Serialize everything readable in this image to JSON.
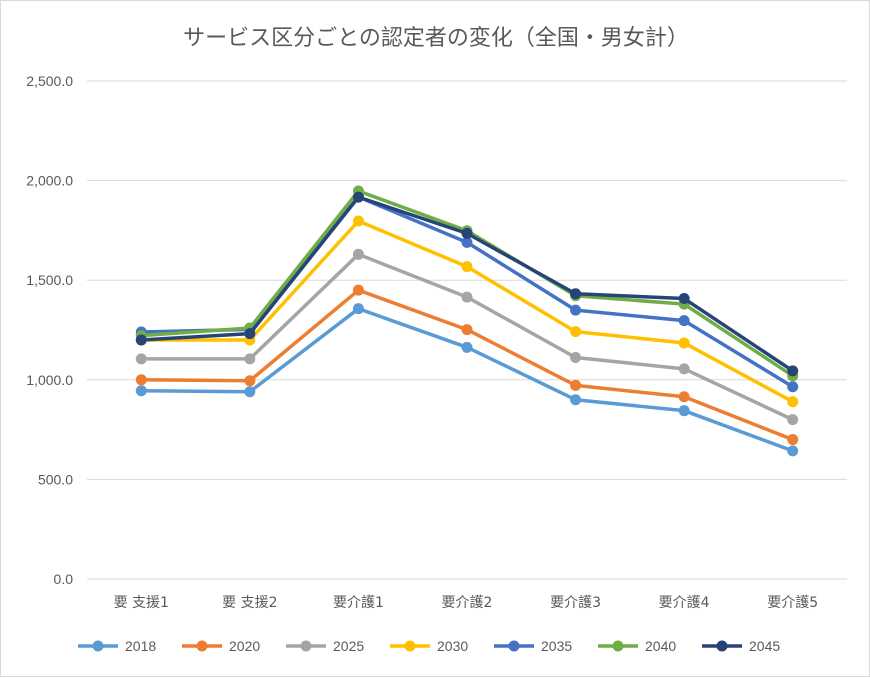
{
  "chart_data": {
    "type": "line",
    "title": "サービス区分ごとの認定者の変化（全国・男女計）",
    "categories": [
      "要 支援1",
      "要 支援2",
      "要介護1",
      "要介護2",
      "要介護3",
      "要介護4",
      "要介護5"
    ],
    "ylim": [
      0,
      2500
    ],
    "yticks": [
      "0.0",
      "500.0",
      "1,000.0",
      "1,500.0",
      "2,000.0",
      "2,500.0"
    ],
    "grid": true,
    "legend_position": "bottom",
    "series": [
      {
        "name": "2018",
        "color": "#5B9BD5",
        "values": [
          945,
          940,
          1357,
          1163,
          900,
          845,
          643
        ]
      },
      {
        "name": "2020",
        "color": "#ED7D31",
        "values": [
          1000,
          995,
          1450,
          1252,
          972,
          915,
          700
        ]
      },
      {
        "name": "2025",
        "color": "#A5A5A5",
        "values": [
          1105,
          1105,
          1630,
          1415,
          1112,
          1055,
          800
        ]
      },
      {
        "name": "2030",
        "color": "#FFC000",
        "values": [
          1200,
          1200,
          1797,
          1568,
          1242,
          1185,
          890
        ]
      },
      {
        "name": "2035",
        "color": "#4472C4",
        "values": [
          1240,
          1253,
          1918,
          1690,
          1350,
          1297,
          965
        ]
      },
      {
        "name": "2040",
        "color": "#70AD47",
        "values": [
          1222,
          1260,
          1948,
          1748,
          1422,
          1380,
          1020
        ]
      },
      {
        "name": "2045",
        "color": "#264478",
        "values": [
          1200,
          1232,
          1917,
          1735,
          1432,
          1408,
          1045
        ]
      }
    ]
  }
}
